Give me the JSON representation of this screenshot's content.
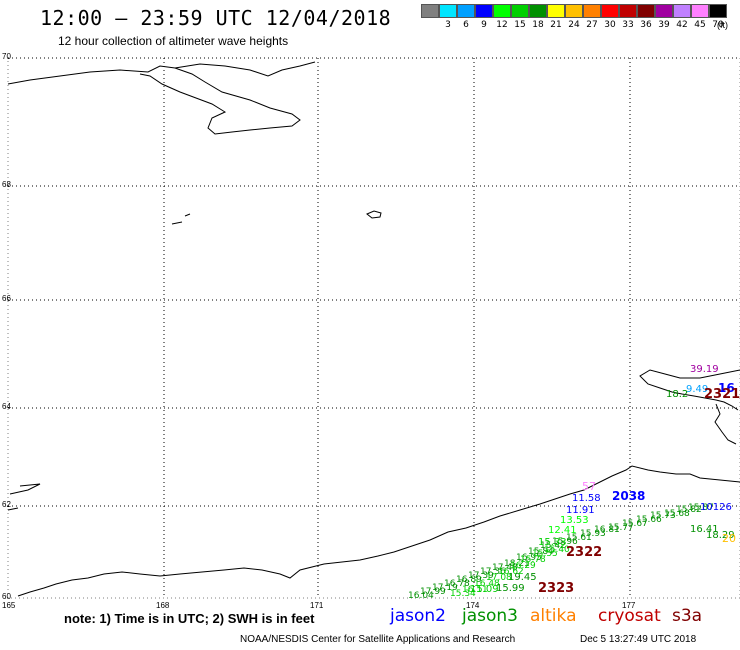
{
  "header": {
    "title": "12:00 – 23:59 UTC 12/04/2018",
    "subtitle": "12 hour collection of altimeter wave heights"
  },
  "colorbar": {
    "unit": "(ft)",
    "bins": [
      {
        "label": "",
        "color": "#808080"
      },
      {
        "label": "3",
        "color": "#00e5ff"
      },
      {
        "label": "6",
        "color": "#00a0ff"
      },
      {
        "label": "9",
        "color": "#0000ff"
      },
      {
        "label": "12",
        "color": "#00ff00"
      },
      {
        "label": "15",
        "color": "#00d000"
      },
      {
        "label": "18",
        "color": "#009000"
      },
      {
        "label": "21",
        "color": "#ffff00"
      },
      {
        "label": "24",
        "color": "#ffc000"
      },
      {
        "label": "27",
        "color": "#ff8000"
      },
      {
        "label": "30",
        "color": "#ff0000"
      },
      {
        "label": "33",
        "color": "#c00000"
      },
      {
        "label": "36",
        "color": "#800000"
      },
      {
        "label": "39",
        "color": "#a000a0"
      },
      {
        "label": "42",
        "color": "#c080ff"
      },
      {
        "label": "45",
        "color": "#ff80ff"
      },
      {
        "label": "70",
        "color": "#000000"
      }
    ]
  },
  "axes": {
    "lat_labels": [
      "70",
      "68",
      "66",
      "64",
      "62",
      "60"
    ],
    "lon_labels": [
      "165",
      "168",
      "171",
      "174",
      "177"
    ]
  },
  "observations": [
    {
      "text": "39.19",
      "color": "#a000a0"
    },
    {
      "text": "16",
      "color": "#0000ff"
    },
    {
      "text": "9.49",
      "color": "#00a0ff"
    },
    {
      "text": "18.2",
      "color": "#009000"
    },
    {
      "text": "2321",
      "color": "#800000"
    },
    {
      "text": "57",
      "color": "#ff80ff"
    },
    {
      "text": "11.58",
      "color": "#0000ff"
    },
    {
      "text": "2038",
      "color": "#0000ff"
    },
    {
      "text": "11.91",
      "color": "#0000ff"
    },
    {
      "text": "13.53",
      "color": "#00ff00"
    },
    {
      "text": "12.41",
      "color": "#00ff00"
    },
    {
      "text": "15.33",
      "color": "#00d000"
    },
    {
      "text": "2322",
      "color": "#800000"
    },
    {
      "text": "19.45",
      "color": "#009000"
    },
    {
      "text": "2323",
      "color": "#800000"
    },
    {
      "text": "16.41",
      "color": "#009000"
    },
    {
      "text": "18.29",
      "color": "#009000"
    },
    {
      "text": "10126",
      "color": "#0000ff"
    },
    {
      "text": "20",
      "color": "#ffc000"
    },
    {
      "text": "15.09",
      "color": "#00d000"
    },
    {
      "text": "15.99",
      "color": "#009000"
    }
  ],
  "note": "note:  1) Time is in UTC;  2) SWH is in feet",
  "legend": [
    {
      "label": "jason2",
      "color": "#0000ff"
    },
    {
      "label": "jason3",
      "color": "#009000"
    },
    {
      "label": "altika",
      "color": "#ff8000"
    },
    {
      "label": "cryosat",
      "color": "#c00000"
    },
    {
      "label": "s3a",
      "color": "#800000"
    }
  ],
  "footer": {
    "credit": "NOAA/NESDIS Center for Satellite Applications and Research",
    "timestamp": "Dec  5 13:27:49 UTC 2018"
  }
}
